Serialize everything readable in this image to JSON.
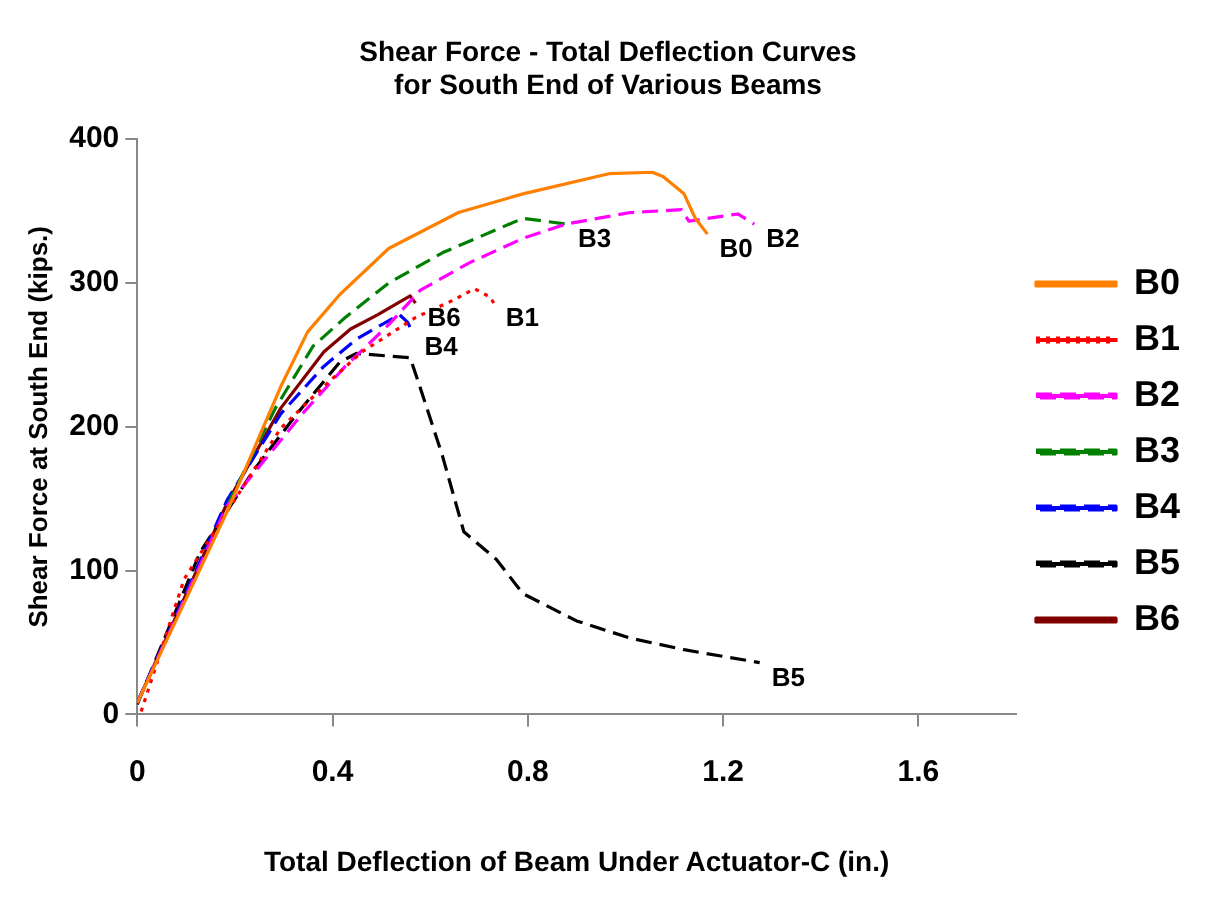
{
  "chart_data": {
    "type": "line",
    "title": "Shear Force - Total Deflection Curves\nfor South End of Various Beams",
    "xlabel": "Total Deflection of Beam Under Actuator-C (in.)",
    "ylabel": "Shear Force at South End (kips.)",
    "xlim": [
      0,
      1.8
    ],
    "ylim": [
      0,
      400
    ],
    "xticks": [
      0,
      0.4,
      0.8,
      1.2,
      1.6
    ],
    "yticks": [
      0,
      100,
      200,
      300,
      400
    ],
    "grid": false,
    "legend": "right",
    "marker": "none",
    "series": [
      {
        "name": "B0",
        "color": "#ff8000",
        "line_style": "solid",
        "x": [
          0,
          0.184,
          0.294,
          0.349,
          0.415,
          0.515,
          0.658,
          0.79,
          0.966,
          1.055,
          1.077,
          1.12,
          1.143,
          1.168
        ],
        "values": [
          8,
          141,
          228,
          266,
          292,
          324,
          349,
          362,
          376,
          377,
          374,
          362,
          345,
          334
        ]
      },
      {
        "name": "B1",
        "color": "#ff0000",
        "line_style": "dotted",
        "x": [
          0.008,
          0.096,
          0.184,
          0.294,
          0.382,
          0.46,
          0.57,
          0.647,
          0.691,
          0.724,
          0.73
        ],
        "values": [
          2,
          94,
          141,
          199,
          228,
          252,
          276,
          288,
          296,
          290,
          286
        ]
      },
      {
        "name": "B2",
        "color": "#ff00ff",
        "line_style": "dashed",
        "x": [
          0,
          0.184,
          0.338,
          0.426,
          0.515,
          0.58,
          0.68,
          0.79,
          0.878,
          1.01,
          1.115,
          1.13,
          1.23,
          1.264
        ],
        "values": [
          8,
          145,
          209,
          242,
          271,
          295,
          314,
          331,
          341,
          349,
          351,
          343,
          348,
          341
        ]
      },
      {
        "name": "B3",
        "color": "#008000",
        "line_style": "dashed",
        "x": [
          0,
          0.184,
          0.283,
          0.36,
          0.426,
          0.515,
          0.625,
          0.79,
          0.878
        ],
        "values": [
          8,
          145,
          213,
          256,
          276,
          300,
          321,
          345,
          341
        ]
      },
      {
        "name": "B4",
        "color": "#0000ff",
        "line_style": "dashed",
        "x": [
          0,
          0.184,
          0.294,
          0.382,
          0.449,
          0.537,
          0.553,
          0.564
        ],
        "values": [
          8,
          149,
          209,
          242,
          261,
          278,
          273,
          266
        ]
      },
      {
        "name": "B5",
        "color": "#000000",
        "line_style": "dashed",
        "x": [
          0,
          0.129,
          0.239,
          0.327,
          0.415,
          0.449,
          0.559,
          0.575,
          0.625,
          0.669,
          0.735,
          0.79,
          0.9,
          1.01,
          1.12,
          1.275
        ],
        "values": [
          7,
          113,
          170,
          209,
          245,
          251,
          248,
          232,
          180,
          127,
          108,
          84,
          65,
          53,
          45,
          36
        ]
      },
      {
        "name": "B6",
        "color": "#800000",
        "line_style": "solid",
        "x": [
          0,
          0.184,
          0.294,
          0.382,
          0.437,
          0.493,
          0.559,
          0.57
        ],
        "values": [
          8,
          147,
          213,
          252,
          268,
          278,
          291,
          286
        ]
      }
    ]
  }
}
